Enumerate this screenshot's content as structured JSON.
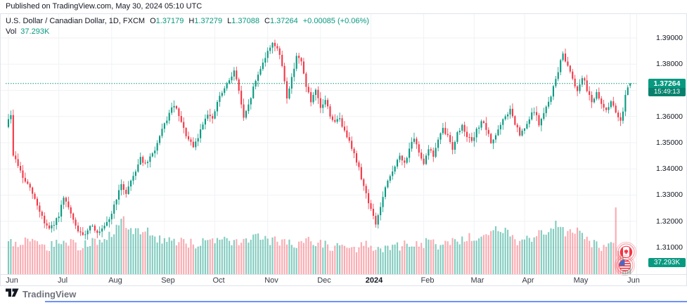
{
  "publish_bar": {
    "text": "Published on TradingView.com, May 30, 2024 05:10 UTC"
  },
  "header": {
    "symbol": "U.S. Dollar / Canadian Dollar, 1D, FXCM",
    "ohlc": [
      {
        "label": "O",
        "value": "1.37179"
      },
      {
        "label": "H",
        "value": "1.37279"
      },
      {
        "label": "L",
        "value": "1.37088"
      },
      {
        "label": "C",
        "value": "1.37264"
      }
    ],
    "change": "+0.00085 (+0.06%)",
    "vol_label": "Vol",
    "vol_value": "37.293K"
  },
  "last_price": {
    "value": "1.37264",
    "countdown": "15:49:13"
  },
  "volume_badge": "37.293K",
  "price_scale": {
    "labels": [
      {
        "text": "1.39000",
        "price": 1.39
      },
      {
        "text": "1.38000",
        "price": 1.38
      },
      {
        "text": "1.36000",
        "price": 1.36
      },
      {
        "text": "1.35000",
        "price": 1.35
      },
      {
        "text": "1.34000",
        "price": 1.34
      },
      {
        "text": "1.33000",
        "price": 1.33
      },
      {
        "text": "1.32000",
        "price": 1.32
      },
      {
        "text": "1.31000",
        "price": 1.31
      }
    ]
  },
  "footer": {
    "logo_text": "TradingView"
  },
  "colors": {
    "up": "#089981",
    "down": "#f23645",
    "badge_countdown_bg": "#07816d",
    "grid": "#f0f2f6",
    "axis_text": "#131722",
    "accent_line_blue": "#6b92f6"
  },
  "chart_data": {
    "type": "candlestick",
    "title": "U.S. Dollar / Canadian Dollar, 1D, FXCM",
    "pair": "USD/CAD",
    "interval": "1D",
    "exchange": "FXCM",
    "ylim": [
      1.3075,
      1.394
    ],
    "grid": true,
    "candle_count": 260,
    "x_months": [
      {
        "label": "Jun",
        "i": 0
      },
      {
        "label": "Jul",
        "i": 21
      },
      {
        "label": "Aug",
        "i": 43
      },
      {
        "label": "Sep",
        "i": 65
      },
      {
        "label": "Oct",
        "i": 86
      },
      {
        "label": "Nov",
        "i": 108
      },
      {
        "label": "Dec",
        "i": 130
      },
      {
        "label": "2024",
        "i": 151,
        "bold": true
      },
      {
        "label": "Feb",
        "i": 173
      },
      {
        "label": "Mar",
        "i": 194
      },
      {
        "label": "Apr",
        "i": 215
      },
      {
        "label": "May",
        "i": 237
      },
      {
        "label": "Jun",
        "i": 259
      }
    ],
    "hidden_gridlines": [
      1.37
    ],
    "close_anchors": [
      [
        0,
        1.3595
      ],
      [
        1,
        1.36
      ],
      [
        2,
        1.3455
      ],
      [
        4,
        1.3415
      ],
      [
        6,
        1.3365
      ],
      [
        8,
        1.334
      ],
      [
        10,
        1.3305
      ],
      [
        12,
        1.326
      ],
      [
        14,
        1.322
      ],
      [
        15,
        1.3195
      ],
      [
        17,
        1.317
      ],
      [
        19,
        1.3185
      ],
      [
        21,
        1.3225
      ],
      [
        23,
        1.3285
      ],
      [
        25,
        1.325
      ],
      [
        27,
        1.32
      ],
      [
        29,
        1.3165
      ],
      [
        31,
        1.314
      ],
      [
        33,
        1.317
      ],
      [
        35,
        1.319
      ],
      [
        37,
        1.315
      ],
      [
        39,
        1.3165
      ],
      [
        41,
        1.319
      ],
      [
        43,
        1.323
      ],
      [
        45,
        1.329
      ],
      [
        47,
        1.3335
      ],
      [
        49,
        1.331
      ],
      [
        51,
        1.3355
      ],
      [
        53,
        1.3395
      ],
      [
        55,
        1.3445
      ],
      [
        57,
        1.3415
      ],
      [
        59,
        1.344
      ],
      [
        61,
        1.3475
      ],
      [
        63,
        1.352
      ],
      [
        65,
        1.357
      ],
      [
        67,
        1.361
      ],
      [
        69,
        1.3645
      ],
      [
        71,
        1.36
      ],
      [
        73,
        1.355
      ],
      [
        75,
        1.351
      ],
      [
        77,
        1.348
      ],
      [
        79,
        1.352
      ],
      [
        81,
        1.3575
      ],
      [
        83,
        1.3615
      ],
      [
        85,
        1.3585
      ],
      [
        87,
        1.3655
      ],
      [
        89,
        1.369
      ],
      [
        91,
        1.372
      ],
      [
        93,
        1.376
      ],
      [
        94,
        1.3775
      ],
      [
        96,
        1.37
      ],
      [
        98,
        1.359
      ],
      [
        100,
        1.364
      ],
      [
        102,
        1.371
      ],
      [
        104,
        1.376
      ],
      [
        106,
        1.381
      ],
      [
        108,
        1.3845
      ],
      [
        110,
        1.3885
      ],
      [
        112,
        1.386
      ],
      [
        114,
        1.3795
      ],
      [
        116,
        1.3675
      ],
      [
        118,
        1.3745
      ],
      [
        120,
        1.3835
      ],
      [
        122,
        1.3805
      ],
      [
        124,
        1.372
      ],
      [
        126,
        1.3655
      ],
      [
        128,
        1.3695
      ],
      [
        130,
        1.363
      ],
      [
        132,
        1.3665
      ],
      [
        134,
        1.3605
      ],
      [
        136,
        1.3575
      ],
      [
        138,
        1.3595
      ],
      [
        140,
        1.354
      ],
      [
        142,
        1.3515
      ],
      [
        144,
        1.3455
      ],
      [
        146,
        1.34
      ],
      [
        148,
        1.3335
      ],
      [
        150,
        1.3275
      ],
      [
        152,
        1.3215
      ],
      [
        153,
        1.319
      ],
      [
        155,
        1.3255
      ],
      [
        157,
        1.3325
      ],
      [
        159,
        1.337
      ],
      [
        161,
        1.3415
      ],
      [
        163,
        1.3445
      ],
      [
        165,
        1.342
      ],
      [
        167,
        1.348
      ],
      [
        169,
        1.351
      ],
      [
        171,
        1.3465
      ],
      [
        173,
        1.3425
      ],
      [
        175,
        1.348
      ],
      [
        177,
        1.345
      ],
      [
        179,
        1.351
      ],
      [
        181,
        1.355
      ],
      [
        183,
        1.3525
      ],
      [
        185,
        1.348
      ],
      [
        187,
        1.3535
      ],
      [
        189,
        1.3565
      ],
      [
        191,
        1.353
      ],
      [
        193,
        1.35
      ],
      [
        195,
        1.3545
      ],
      [
        197,
        1.3585
      ],
      [
        199,
        1.355
      ],
      [
        201,
        1.35
      ],
      [
        203,
        1.353
      ],
      [
        205,
        1.3565
      ],
      [
        207,
        1.36
      ],
      [
        209,
        1.3625
      ],
      [
        211,
        1.357
      ],
      [
        213,
        1.353
      ],
      [
        215,
        1.355
      ],
      [
        217,
        1.359
      ],
      [
        219,
        1.3625
      ],
      [
        221,
        1.357
      ],
      [
        223,
        1.361
      ],
      [
        225,
        1.3655
      ],
      [
        227,
        1.371
      ],
      [
        229,
        1.3775
      ],
      [
        231,
        1.384
      ],
      [
        233,
        1.3795
      ],
      [
        235,
        1.375
      ],
      [
        237,
        1.3695
      ],
      [
        239,
        1.3755
      ],
      [
        241,
        1.3705
      ],
      [
        243,
        1.366
      ],
      [
        245,
        1.3685
      ],
      [
        247,
        1.3645
      ],
      [
        249,
        1.3625
      ],
      [
        251,
        1.366
      ],
      [
        253,
        1.361
      ],
      [
        255,
        1.359
      ],
      [
        256,
        1.3625
      ],
      [
        257,
        1.3685
      ],
      [
        258,
        1.3715
      ],
      [
        259,
        1.37264
      ]
    ],
    "volume_anchors": [
      [
        0,
        0.45
      ],
      [
        8,
        0.52
      ],
      [
        15,
        0.4
      ],
      [
        22,
        0.48
      ],
      [
        30,
        0.42
      ],
      [
        38,
        0.5
      ],
      [
        43,
        0.62
      ],
      [
        48,
        0.8
      ],
      [
        52,
        0.6
      ],
      [
        57,
        0.68
      ],
      [
        62,
        0.55
      ],
      [
        70,
        0.5
      ],
      [
        78,
        0.45
      ],
      [
        86,
        0.52
      ],
      [
        95,
        0.48
      ],
      [
        103,
        0.55
      ],
      [
        110,
        0.5
      ],
      [
        118,
        0.45
      ],
      [
        126,
        0.5
      ],
      [
        134,
        0.42
      ],
      [
        142,
        0.38
      ],
      [
        150,
        0.45
      ],
      [
        155,
        0.35
      ],
      [
        163,
        0.42
      ],
      [
        170,
        0.48
      ],
      [
        178,
        0.44
      ],
      [
        186,
        0.5
      ],
      [
        194,
        0.55
      ],
      [
        200,
        0.6
      ],
      [
        206,
        0.68
      ],
      [
        212,
        0.5
      ],
      [
        218,
        0.55
      ],
      [
        224,
        0.65
      ],
      [
        229,
        0.78
      ],
      [
        233,
        0.6
      ],
      [
        238,
        0.68
      ],
      [
        243,
        0.45
      ],
      [
        248,
        0.4
      ],
      [
        252,
        0.5
      ],
      [
        253,
        1.0
      ],
      [
        254,
        0.42
      ],
      [
        255,
        0.3
      ],
      [
        256,
        0.28
      ],
      [
        257,
        0.24
      ],
      [
        258,
        0.2
      ],
      [
        259,
        0.17
      ]
    ],
    "last_candle": {
      "o": 1.37179,
      "h": 1.37279,
      "l": 1.37088,
      "c": 1.37264
    },
    "last_price_line": 1.37264,
    "render_seed": 9,
    "up_color": "#089981",
    "down_color": "#f23645",
    "vol_up_color": "rgba(8,153,129,0.5)",
    "vol_down_color": "rgba(242,54,69,0.42)"
  }
}
